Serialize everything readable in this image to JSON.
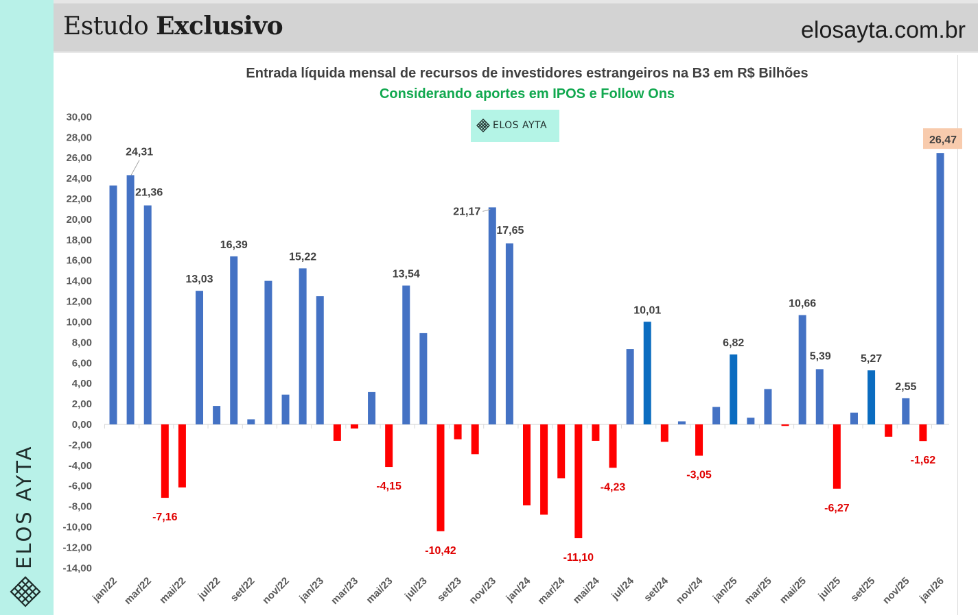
{
  "header": {
    "title_regular": "Estudo",
    "title_bold": "Exclusivo",
    "site": "elosayta.com.br"
  },
  "sidebar": {
    "brand": "ELOS AYTA",
    "logo_icon": "diamond-lattice-icon"
  },
  "logo_badge": {
    "text": "ELOS AYTA",
    "icon": "diamond-lattice-icon"
  },
  "colors": {
    "positive": "#4472c4",
    "highlight": "#0b6cc0",
    "negative": "#ff0000",
    "label_dark": "#404040",
    "label_negative": "#e00000",
    "last_label_bg": "#f8cbad",
    "sidebar_bg": "#b8f1e8"
  },
  "chart_data": {
    "type": "bar",
    "title": "Entrada líquida mensal de recursos de investidores estrangeiros na B3 em R$ Bilhões",
    "subtitle": "Considerando aportes em IPOS e Follow Ons",
    "xlabel": "",
    "ylabel": "",
    "ylim": [
      -14,
      30
    ],
    "yticks": [
      30,
      28,
      26,
      24,
      22,
      20,
      18,
      16,
      14,
      12,
      10,
      8,
      6,
      4,
      2,
      0,
      -2,
      -4,
      -6,
      -8,
      -10,
      -12,
      -14
    ],
    "ytick_labels": [
      "30,00",
      "28,00",
      "26,00",
      "24,00",
      "22,00",
      "20,00",
      "18,00",
      "16,00",
      "14,00",
      "12,00",
      "10,00",
      "8,00",
      "6,00",
      "4,00",
      "2,00",
      "0,00",
      "-2,00",
      "-4,00",
      "-6,00",
      "-8,00",
      "-10,00",
      "-12,00",
      "-14,00"
    ],
    "grid": false,
    "legend": "none",
    "categories": [
      "jan/22",
      "fev/22",
      "mar/22",
      "abr/22",
      "mai/22",
      "jun/22",
      "jul/22",
      "ago/22",
      "set/22",
      "out/22",
      "nov/22",
      "dez/22",
      "jan/23",
      "fev/23",
      "mar/23",
      "abr/23",
      "mai/23",
      "jun/23",
      "jul/23",
      "ago/23",
      "set/23",
      "out/23",
      "nov/23",
      "dez/23",
      "jan/24",
      "fev/24",
      "mar/24",
      "abr/24",
      "mai/24",
      "jun/24",
      "jul/24",
      "ago/24",
      "set/24",
      "out/24",
      "nov/24",
      "dez/24",
      "jan/25",
      "fev/25",
      "mar/25",
      "abr/25",
      "mai/25",
      "jun/25",
      "jul/25",
      "ago/25",
      "set/25",
      "out/25",
      "nov/25",
      "dez/25",
      "jan/26"
    ],
    "xtick_labels_shown": [
      "jan/22",
      "mar/22",
      "mai/22",
      "jul/22",
      "set/22",
      "nov/22",
      "jan/23",
      "mar/23",
      "mai/23",
      "jul/23",
      "set/23",
      "nov/23",
      "jan/24",
      "mar/24",
      "mai/24",
      "jul/24",
      "set/24",
      "nov/24",
      "jan/25",
      "mar/25",
      "mai/25",
      "jul/25",
      "set/25",
      "nov/25",
      "jan/26"
    ],
    "values": [
      23.3,
      24.31,
      21.36,
      -7.16,
      -6.15,
      13.03,
      1.8,
      16.39,
      0.5,
      14.0,
      2.9,
      15.22,
      12.5,
      -1.6,
      -0.4,
      3.15,
      -4.15,
      13.54,
      8.9,
      -10.42,
      -1.45,
      -2.9,
      21.17,
      17.65,
      -7.9,
      -8.8,
      -5.25,
      -11.1,
      -1.6,
      -4.23,
      7.35,
      10.01,
      -1.7,
      0.3,
      -3.05,
      1.7,
      6.82,
      0.65,
      3.45,
      -0.15,
      10.66,
      5.39,
      -6.27,
      1.15,
      5.27,
      -1.2,
      2.55,
      -1.62,
      26.47
    ],
    "highlighted": [
      "ago/24",
      "jan/25",
      "set/25"
    ],
    "data_labels": [
      {
        "category": "fev/22",
        "text": "24,31"
      },
      {
        "category": "mar/22",
        "text": "21,36"
      },
      {
        "category": "abr/22",
        "text": "-7,16"
      },
      {
        "category": "jun/22",
        "text": "13,03"
      },
      {
        "category": "ago/22",
        "text": "16,39"
      },
      {
        "category": "dez/22",
        "text": "15,22"
      },
      {
        "category": "mai/23",
        "text": "-4,15"
      },
      {
        "category": "jun/23",
        "text": "13,54"
      },
      {
        "category": "ago/23",
        "text": "-10,42"
      },
      {
        "category": "nov/23",
        "text": "21,17"
      },
      {
        "category": "dez/23",
        "text": "17,65"
      },
      {
        "category": "abr/24",
        "text": "-11,10"
      },
      {
        "category": "jun/24",
        "text": "-4,23"
      },
      {
        "category": "ago/24",
        "text": "10,01"
      },
      {
        "category": "nov/24",
        "text": "-3,05"
      },
      {
        "category": "jan/25",
        "text": "6,82"
      },
      {
        "category": "mai/25",
        "text": "10,66"
      },
      {
        "category": "jun/25",
        "text": "5,39"
      },
      {
        "category": "jul/25",
        "text": "-6,27"
      },
      {
        "category": "set/25",
        "text": "5,27"
      },
      {
        "category": "nov/25",
        "text": "2,55"
      },
      {
        "category": "dez/25",
        "text": "-1,62"
      },
      {
        "category": "jan/26",
        "text": "26,47",
        "boxed": true
      }
    ]
  }
}
